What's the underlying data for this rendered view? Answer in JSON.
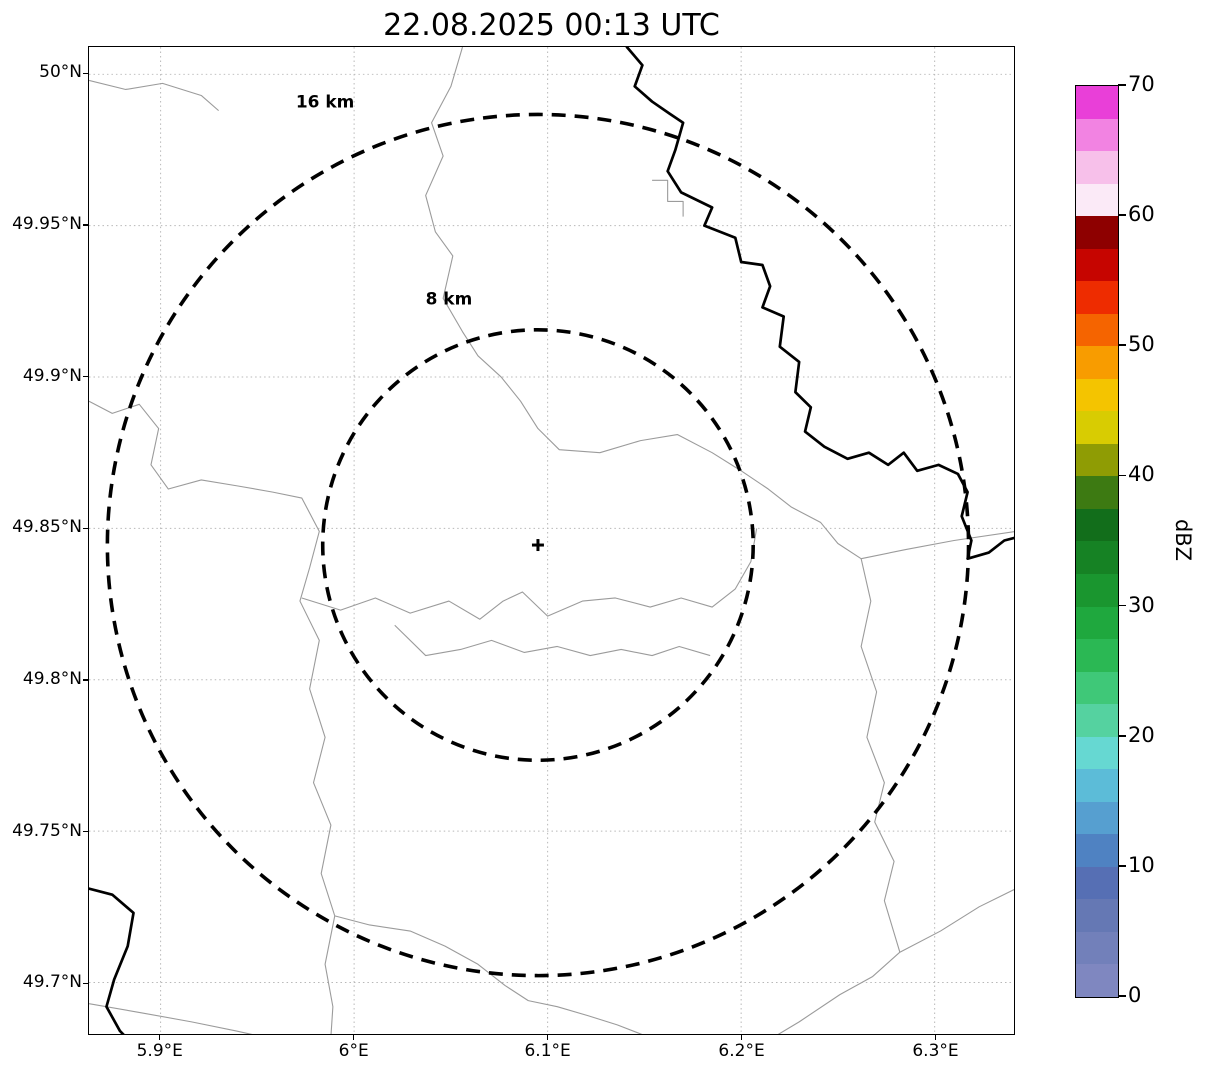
{
  "chart_data": {
    "type": "map",
    "title": "22.08.2025 00:13 UTC",
    "extent": {
      "lon_min": 5.863,
      "lon_max": 6.341,
      "lat_min": 49.683,
      "lat_max": 50.009
    },
    "x_ticks": [
      {
        "value": 5.9,
        "label": "5.9°E"
      },
      {
        "value": 6.0,
        "label": "6°E"
      },
      {
        "value": 6.1,
        "label": "6.1°E"
      },
      {
        "value": 6.2,
        "label": "6.2°E"
      },
      {
        "value": 6.3,
        "label": "6.3°E"
      }
    ],
    "y_ticks": [
      {
        "value": 50.0,
        "label": "50°N"
      },
      {
        "value": 49.95,
        "label": "49.95°N"
      },
      {
        "value": 49.9,
        "label": "49.9°N"
      },
      {
        "value": 49.85,
        "label": "49.85°N"
      },
      {
        "value": 49.8,
        "label": "49.8°N"
      },
      {
        "value": 49.75,
        "label": "49.75°N"
      },
      {
        "value": 49.7,
        "label": "49.7°N"
      }
    ],
    "grid": true,
    "radar_center": {
      "lon": 6.095,
      "lat": 49.8445
    },
    "km_per_deg_lat": 112.5,
    "range_rings": [
      {
        "radius_km": 8,
        "label": "8 km",
        "label_pos": [
          6.049,
          49.924
        ]
      },
      {
        "radius_km": 16,
        "label": "16 km",
        "label_pos": [
          5.985,
          49.989
        ]
      }
    ],
    "colorbar": {
      "label": "dBZ",
      "min": 0,
      "max": 70,
      "ticks": [
        {
          "value": 0,
          "label": "0"
        },
        {
          "value": 10,
          "label": "10"
        },
        {
          "value": 20,
          "label": "20"
        },
        {
          "value": 30,
          "label": "30"
        },
        {
          "value": 40,
          "label": "40"
        },
        {
          "value": 50,
          "label": "50"
        },
        {
          "value": 60,
          "label": "60"
        },
        {
          "value": 70,
          "label": "70"
        }
      ],
      "segments": [
        {
          "from": 0,
          "to": 2.5,
          "color": "#7f87c0"
        },
        {
          "from": 2.5,
          "to": 5,
          "color": "#7280ba"
        },
        {
          "from": 5,
          "to": 7.5,
          "color": "#6578b4"
        },
        {
          "from": 7.5,
          "to": 10,
          "color": "#566fb4"
        },
        {
          "from": 10,
          "to": 12.5,
          "color": "#4f82c2"
        },
        {
          "from": 12.5,
          "to": 15,
          "color": "#569fd0"
        },
        {
          "from": 15,
          "to": 17.5,
          "color": "#5cbcd8"
        },
        {
          "from": 17.5,
          "to": 20,
          "color": "#66d8d2"
        },
        {
          "from": 20,
          "to": 22.5,
          "color": "#55d2a0"
        },
        {
          "from": 22.5,
          "to": 25,
          "color": "#3fc878"
        },
        {
          "from": 25,
          "to": 27.5,
          "color": "#2bb854"
        },
        {
          "from": 27.5,
          "to": 30,
          "color": "#1fa83e"
        },
        {
          "from": 30,
          "to": 32.5,
          "color": "#1a962f"
        },
        {
          "from": 32.5,
          "to": 35,
          "color": "#168224"
        },
        {
          "from": 35,
          "to": 37.5,
          "color": "#126e1b"
        },
        {
          "from": 37.5,
          "to": 40,
          "color": "#3d7a12"
        },
        {
          "from": 40,
          "to": 42.5,
          "color": "#8f9c04"
        },
        {
          "from": 42.5,
          "to": 45,
          "color": "#d8cc02"
        },
        {
          "from": 45,
          "to": 47.5,
          "color": "#f4c400"
        },
        {
          "from": 47.5,
          "to": 50,
          "color": "#f89c00"
        },
        {
          "from": 50,
          "to": 52.5,
          "color": "#f56400"
        },
        {
          "from": 52.5,
          "to": 55,
          "color": "#ee2c00"
        },
        {
          "from": 55,
          "to": 57.5,
          "color": "#c60500"
        },
        {
          "from": 57.5,
          "to": 60,
          "color": "#8e0000"
        },
        {
          "from": 60,
          "to": 62.5,
          "color": "#fbeaf7"
        },
        {
          "from": 62.5,
          "to": 65,
          "color": "#f7c0ea"
        },
        {
          "from": 65,
          "to": 67.5,
          "color": "#f283e2"
        },
        {
          "from": 67.5,
          "to": 70,
          "color": "#e93fd8"
        }
      ]
    },
    "rivers": [
      [
        [
          6.141,
          50.009
        ],
        [
          6.149,
          50.003
        ],
        [
          6.145,
          49.996
        ],
        [
          6.154,
          49.991
        ],
        [
          6.163,
          49.987
        ],
        [
          6.17,
          49.984
        ],
        [
          6.166,
          49.975
        ],
        [
          6.162,
          49.968
        ],
        [
          6.169,
          49.961
        ],
        [
          6.185,
          49.956
        ],
        [
          6.181,
          49.95
        ],
        [
          6.197,
          49.946
        ],
        [
          6.2,
          49.938
        ],
        [
          6.211,
          49.937
        ],
        [
          6.215,
          49.93
        ],
        [
          6.211,
          49.923
        ],
        [
          6.222,
          49.92
        ],
        [
          6.22,
          49.91
        ],
        [
          6.23,
          49.905
        ],
        [
          6.228,
          49.895
        ],
        [
          6.236,
          49.89
        ],
        [
          6.233,
          49.882
        ],
        [
          6.243,
          49.877
        ],
        [
          6.255,
          49.873
        ],
        [
          6.266,
          49.875
        ],
        [
          6.276,
          49.871
        ],
        [
          6.284,
          49.875
        ],
        [
          6.291,
          49.869
        ],
        [
          6.302,
          49.871
        ],
        [
          6.312,
          49.868
        ],
        [
          6.317,
          49.862
        ],
        [
          6.314,
          49.854
        ],
        [
          6.319,
          49.846
        ],
        [
          6.317,
          49.84
        ],
        [
          6.328,
          49.842
        ],
        [
          6.336,
          49.846
        ],
        [
          6.342,
          49.847
        ]
      ],
      [
        [
          5.863,
          49.731
        ],
        [
          5.875,
          49.729
        ],
        [
          5.886,
          49.723
        ],
        [
          5.883,
          49.712
        ],
        [
          5.876,
          49.701
        ],
        [
          5.872,
          49.692
        ],
        [
          5.879,
          49.684
        ],
        [
          5.882,
          49.682
        ]
      ]
    ],
    "borders": [
      [
        [
          6.056,
          50.009
        ],
        [
          6.05,
          49.996
        ],
        [
          6.04,
          49.984
        ],
        [
          6.046,
          49.973
        ],
        [
          6.037,
          49.96
        ],
        [
          6.042,
          49.948
        ],
        [
          6.051,
          49.94
        ],
        [
          6.046,
          49.926
        ],
        [
          6.056,
          49.915
        ],
        [
          6.064,
          49.907
        ],
        [
          6.076,
          49.9
        ],
        [
          6.086,
          49.892
        ],
        [
          6.095,
          49.883
        ],
        [
          6.106,
          49.876
        ],
        [
          6.127,
          49.875
        ],
        [
          6.148,
          49.879
        ],
        [
          6.167,
          49.881
        ],
        [
          6.185,
          49.875
        ],
        [
          6.2,
          49.869
        ],
        [
          6.214,
          49.863
        ],
        [
          6.226,
          49.857
        ],
        [
          6.241,
          49.852
        ],
        [
          6.25,
          49.845
        ],
        [
          6.262,
          49.84
        ],
        [
          6.285,
          49.843
        ],
        [
          6.31,
          49.846
        ],
        [
          6.342,
          49.849
        ]
      ],
      [
        [
          6.154,
          49.965
        ],
        [
          6.162,
          49.965
        ],
        [
          6.162,
          49.958
        ],
        [
          6.17,
          49.958
        ],
        [
          6.17,
          49.953
        ]
      ],
      [
        [
          5.863,
          49.892
        ],
        [
          5.875,
          49.888
        ],
        [
          5.889,
          49.891
        ],
        [
          5.899,
          49.883
        ],
        [
          5.895,
          49.871
        ],
        [
          5.904,
          49.863
        ],
        [
          5.921,
          49.866
        ],
        [
          5.94,
          49.864
        ],
        [
          5.958,
          49.862
        ],
        [
          5.973,
          49.86
        ],
        [
          5.982,
          49.849
        ],
        [
          5.977,
          49.837
        ],
        [
          5.972,
          49.826
        ],
        [
          5.982,
          49.813
        ],
        [
          5.977,
          49.797
        ],
        [
          5.985,
          49.781
        ],
        [
          5.979,
          49.766
        ],
        [
          5.988,
          49.752
        ],
        [
          5.983,
          49.736
        ],
        [
          5.99,
          49.722
        ],
        [
          5.985,
          49.706
        ],
        [
          5.989,
          49.692
        ],
        [
          5.988,
          49.682
        ]
      ],
      [
        [
          5.973,
          49.827
        ],
        [
          5.993,
          49.823
        ],
        [
          6.011,
          49.827
        ],
        [
          6.029,
          49.822
        ],
        [
          6.049,
          49.826
        ],
        [
          6.065,
          49.82
        ],
        [
          6.077,
          49.826
        ],
        [
          6.087,
          49.829
        ],
        [
          6.1,
          49.821
        ],
        [
          6.118,
          49.826
        ],
        [
          6.135,
          49.827
        ],
        [
          6.153,
          49.824
        ],
        [
          6.169,
          49.827
        ],
        [
          6.185,
          49.824
        ],
        [
          6.197,
          49.83
        ],
        [
          6.205,
          49.839
        ],
        [
          6.208,
          49.85
        ]
      ],
      [
        [
          6.021,
          49.818
        ],
        [
          6.037,
          49.808
        ],
        [
          6.055,
          49.81
        ],
        [
          6.071,
          49.813
        ],
        [
          6.088,
          49.809
        ],
        [
          6.105,
          49.811
        ],
        [
          6.122,
          49.808
        ],
        [
          6.138,
          49.81
        ],
        [
          6.154,
          49.808
        ],
        [
          6.168,
          49.811
        ],
        [
          6.184,
          49.808
        ]
      ],
      [
        [
          5.99,
          49.722
        ],
        [
          6.008,
          49.719
        ],
        [
          6.029,
          49.717
        ],
        [
          6.047,
          49.712
        ],
        [
          6.064,
          49.706
        ],
        [
          6.078,
          49.699
        ],
        [
          6.09,
          49.694
        ],
        [
          6.105,
          49.692
        ],
        [
          6.121,
          49.689
        ],
        [
          6.136,
          49.686
        ],
        [
          6.152,
          49.682
        ]
      ],
      [
        [
          5.863,
          49.693
        ],
        [
          5.89,
          49.69
        ],
        [
          5.916,
          49.687
        ],
        [
          5.939,
          49.684
        ],
        [
          5.953,
          49.682
        ]
      ],
      [
        [
          6.217,
          49.682
        ],
        [
          6.23,
          49.687
        ],
        [
          6.251,
          49.696
        ],
        [
          6.268,
          49.702
        ],
        [
          6.282,
          49.71
        ],
        [
          6.303,
          49.717
        ],
        [
          6.323,
          49.725
        ],
        [
          6.342,
          49.731
        ]
      ],
      [
        [
          5.863,
          49.998
        ],
        [
          5.882,
          49.995
        ],
        [
          5.901,
          49.997
        ],
        [
          5.921,
          49.993
        ],
        [
          5.93,
          49.988
        ]
      ],
      [
        [
          6.262,
          49.84
        ],
        [
          6.267,
          49.826
        ],
        [
          6.262,
          49.811
        ],
        [
          6.27,
          49.796
        ],
        [
          6.265,
          49.781
        ],
        [
          6.274,
          49.766
        ],
        [
          6.269,
          49.753
        ],
        [
          6.279,
          49.74
        ],
        [
          6.274,
          49.727
        ],
        [
          6.282,
          49.71
        ]
      ]
    ]
  }
}
